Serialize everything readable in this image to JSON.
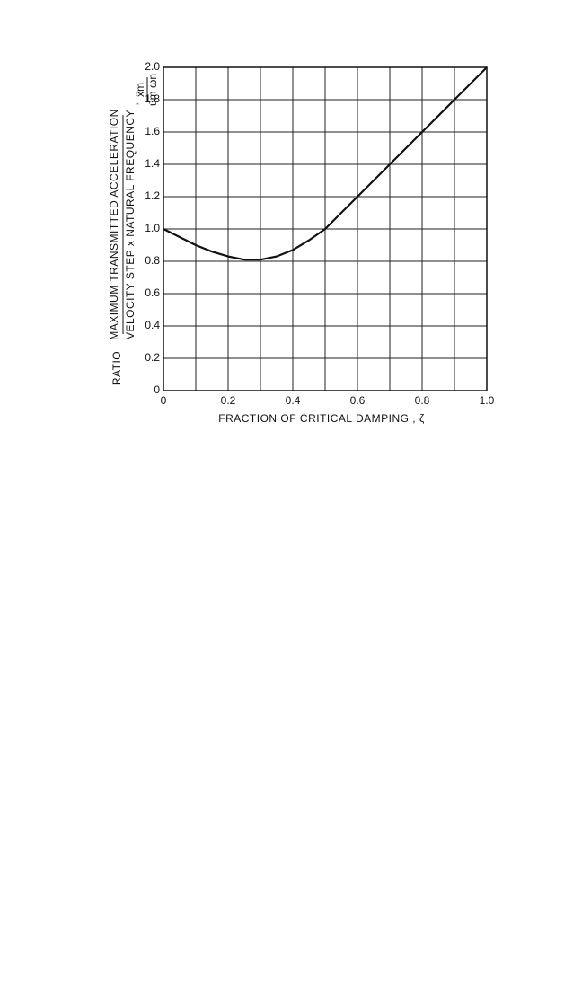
{
  "chart_data": {
    "type": "line",
    "x_label": "FRACTION OF CRITICAL DAMPING , ζ",
    "y_label_prefix": "RATIO",
    "y_label_numerator": "MAXIMUM TRANSMITTED ACCELERATION",
    "y_label_denominator": "VELOCITY STEP x NATURAL FREQUENCY",
    "y_symbol_numerator": "ẍm",
    "y_symbol_denominator": "u̇m ωn",
    "x": [
      0,
      0.05,
      0.1,
      0.15,
      0.2,
      0.25,
      0.3,
      0.35,
      0.4,
      0.45,
      0.5,
      0.6,
      0.7,
      0.8,
      0.9,
      1.0
    ],
    "series": [
      {
        "color": "#111111",
        "values": [
          1.0,
          0.95,
          0.9,
          0.86,
          0.83,
          0.81,
          0.81,
          0.83,
          0.87,
          0.93,
          1.0,
          1.2,
          1.4,
          1.6,
          1.8,
          2.0
        ]
      }
    ],
    "xlim": [
      0,
      1
    ],
    "ylim": [
      0,
      2
    ],
    "xticks": [
      0,
      0.2,
      0.4,
      0.6,
      0.8,
      {
        "value": 1,
        "label": "1.0"
      }
    ],
    "yticks": [
      0,
      0.2,
      0.4,
      0.6,
      0.8,
      {
        "value": 1,
        "label": "1.0"
      },
      1.2,
      1.4,
      1.6,
      1.8,
      {
        "value": 2,
        "label": "2.0"
      }
    ],
    "grid": true
  }
}
